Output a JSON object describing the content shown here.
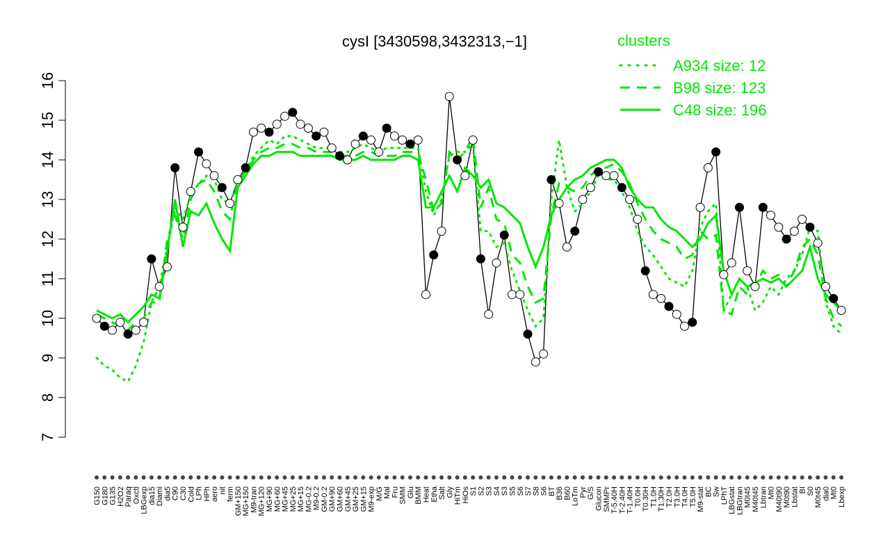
{
  "chart_data": {
    "type": "line",
    "title": "cysI [3430598,3432313,−1]",
    "xlabel": "",
    "ylabel": "",
    "ylim": [
      7,
      16
    ],
    "y_ticks": [
      7,
      8,
      9,
      10,
      11,
      12,
      13,
      14,
      15,
      16
    ],
    "x_tick_labels": [
      "G150",
      "G180",
      "G135",
      "H2O2",
      "Paraq",
      "Oxctl",
      "LBGexp",
      "dia15",
      "Diami",
      "dia5",
      "C90",
      "C30",
      "Cold",
      "LPh",
      "HPh",
      "aero",
      "nit",
      "ferm",
      "GM+150",
      "MG+150",
      "M9-tran",
      "MG+120",
      "MG+90",
      "MG+60",
      "MG+45",
      "MG+25",
      "MG+15",
      "MG-0.2",
      "M9-0.2",
      "GM-0.2",
      "GM+90",
      "GM+60",
      "GM+45",
      "GM+25",
      "GM+15",
      "M9-exp",
      "M/G",
      "Mal",
      "Fru",
      "SMM",
      "Glu",
      "BMM",
      "Heat",
      "Etha",
      "Salt",
      "Gly",
      "HiTm",
      "HiOs",
      "S1",
      "S2",
      "S3",
      "S4",
      "S3",
      "S5",
      "S6",
      "S7",
      "S8",
      "S6",
      "BT",
      "B36",
      "B60",
      "LoTm",
      "Pyr",
      "G/S",
      "Glucon",
      "SMMPr",
      "T-5.40H",
      "T-2.40H",
      "T-1.40H",
      "T0.0H",
      "T0.30H",
      "T1.0H",
      "T1.30H",
      "T2.0H",
      "T3.0H",
      "T4.0H",
      "T5.0H",
      "M9-stat",
      "BC",
      "Sw",
      "LPhT",
      "LBGstat",
      "LBGtran",
      "M0t45",
      "M40t45",
      "Lbtran",
      "Mt0",
      "M40t90",
      "M0t90",
      "Lbstat",
      "BI",
      "S0",
      "M0t45",
      "dia0",
      "Mt0",
      "Lbexp"
    ],
    "legend": {
      "title": "clusters",
      "placement": "top-right",
      "entries": [
        {
          "label": "A934 size: 12",
          "style": "dotted"
        },
        {
          "label": "B98 size: 123",
          "style": "dashed"
        },
        {
          "label": "C48 size: 196",
          "style": "solid"
        }
      ]
    },
    "series": [
      {
        "name": "cysI",
        "style": "black-line-with-points",
        "values": [
          10.0,
          9.8,
          9.7,
          9.9,
          9.6,
          9.7,
          9.9,
          11.5,
          10.8,
          11.3,
          13.8,
          12.3,
          13.2,
          14.2,
          13.9,
          13.6,
          13.3,
          12.9,
          13.5,
          13.8,
          14.7,
          14.8,
          14.7,
          14.9,
          15.1,
          15.2,
          14.9,
          14.8,
          14.6,
          14.7,
          14.3,
          14.1,
          14.0,
          14.4,
          14.6,
          14.5,
          14.2,
          14.8,
          14.6,
          14.5,
          14.4,
          14.5,
          10.6,
          11.6,
          12.2,
          15.6,
          14.0,
          13.6,
          14.5,
          11.5,
          10.1,
          11.4,
          12.1,
          10.6,
          10.6,
          9.6,
          8.9,
          9.1,
          13.5,
          12.9,
          11.8,
          12.2,
          13.0,
          13.3,
          13.7,
          13.6,
          13.6,
          13.3,
          13.0,
          12.5,
          11.2,
          10.6,
          10.5,
          10.3,
          10.1,
          9.8,
          9.9,
          12.8,
          13.8,
          14.2,
          11.1,
          11.4,
          12.8,
          11.2,
          10.8,
          12.8,
          12.6,
          12.3,
          12.0,
          12.2,
          12.5,
          12.3,
          11.9,
          10.8,
          10.5,
          10.2
        ]
      },
      {
        "name": "C48 size: 196",
        "style": "solid",
        "values": [
          10.2,
          10.1,
          10.0,
          10.1,
          9.9,
          10.1,
          10.3,
          10.6,
          10.5,
          11.7,
          13.0,
          11.8,
          12.7,
          12.6,
          12.9,
          12.4,
          12.0,
          11.7,
          13.3,
          13.6,
          13.9,
          14.1,
          14.1,
          14.2,
          14.2,
          14.2,
          14.1,
          14.1,
          14.1,
          14.1,
          14.1,
          14.0,
          14.0,
          14.0,
          14.1,
          14.0,
          14.0,
          14.0,
          14.0,
          14.1,
          14.1,
          14.0,
          12.8,
          12.8,
          13.2,
          13.6,
          13.2,
          13.8,
          13.6,
          13.3,
          13.5,
          12.9,
          12.8,
          12.6,
          12.4,
          11.8,
          11.3,
          11.8,
          12.6,
          13.0,
          13.3,
          13.5,
          13.6,
          13.8,
          13.9,
          14.0,
          14.0,
          13.8,
          13.3,
          13.0,
          12.8,
          12.8,
          12.5,
          12.3,
          12.2,
          12.0,
          11.8,
          12.0,
          12.4,
          12.6,
          11.2,
          10.6,
          11.0,
          10.8,
          10.9,
          11.0,
          10.9,
          11.0,
          10.8,
          11.0,
          11.2,
          11.8,
          11.0,
          10.6,
          10.4,
          10.2
        ]
      },
      {
        "name": "B98 size: 123",
        "style": "dashed",
        "values": [
          10.1,
          10.0,
          9.9,
          9.8,
          9.7,
          9.9,
          10.0,
          10.4,
          10.4,
          12.0,
          12.6,
          12.0,
          13.0,
          13.4,
          13.5,
          13.2,
          12.7,
          12.5,
          13.5,
          13.7,
          14.0,
          14.2,
          14.3,
          14.3,
          14.4,
          14.4,
          14.3,
          14.3,
          14.2,
          14.2,
          14.2,
          14.1,
          14.1,
          14.1,
          14.2,
          14.2,
          14.1,
          14.1,
          14.1,
          14.2,
          14.2,
          14.2,
          13.5,
          12.7,
          12.9,
          14.2,
          14.0,
          14.2,
          14.6,
          12.8,
          13.3,
          12.5,
          12.4,
          11.6,
          11.4,
          10.8,
          10.4,
          10.5,
          12.6,
          13.4,
          13.3,
          13.2,
          13.3,
          13.6,
          13.8,
          13.8,
          13.9,
          13.7,
          13.4,
          12.9,
          12.5,
          12.2,
          12.0,
          11.9,
          11.8,
          11.5,
          11.6,
          12.2,
          12.0,
          12.1,
          10.2,
          10.1,
          10.8,
          10.6,
          10.8,
          11.2,
          11.0,
          11.1,
          10.8,
          11.2,
          11.8,
          12.0,
          11.6,
          10.5,
          10.0,
          9.8
        ]
      },
      {
        "name": "A934 size: 12",
        "style": "dotted",
        "values": [
          9.0,
          8.8,
          8.7,
          8.5,
          8.4,
          8.8,
          9.4,
          10.4,
          10.8,
          11.8,
          12.8,
          12.5,
          13.1,
          13.4,
          13.6,
          13.5,
          13.0,
          12.9,
          13.4,
          13.7,
          14.1,
          14.3,
          14.5,
          14.4,
          14.6,
          14.6,
          14.5,
          14.4,
          14.3,
          14.3,
          14.3,
          14.2,
          14.2,
          14.3,
          14.4,
          14.3,
          14.2,
          14.3,
          14.3,
          14.3,
          14.3,
          14.3,
          13.2,
          12.6,
          13.0,
          14.1,
          14.2,
          14.2,
          14.4,
          12.2,
          12.2,
          11.8,
          11.9,
          11.2,
          10.7,
          10.2,
          9.8,
          10.0,
          13.0,
          14.5,
          13.3,
          12.7,
          12.9,
          13.2,
          13.6,
          13.5,
          13.5,
          13.2,
          12.8,
          12.2,
          11.8,
          11.6,
          11.3,
          11.0,
          10.9,
          10.8,
          11.2,
          12.3,
          12.7,
          12.9,
          10.2,
          10.6,
          11.0,
          10.8,
          10.2,
          10.4,
          10.8,
          10.6,
          11.0,
          11.2,
          11.6,
          12.3,
          12.2,
          10.4,
          9.8,
          9.6
        ]
      }
    ]
  },
  "colors": {
    "cluster_line": "#00e600",
    "data_line": "#000000",
    "point_fill_open": "#ffffff",
    "point_fill_filled": "#000000"
  }
}
